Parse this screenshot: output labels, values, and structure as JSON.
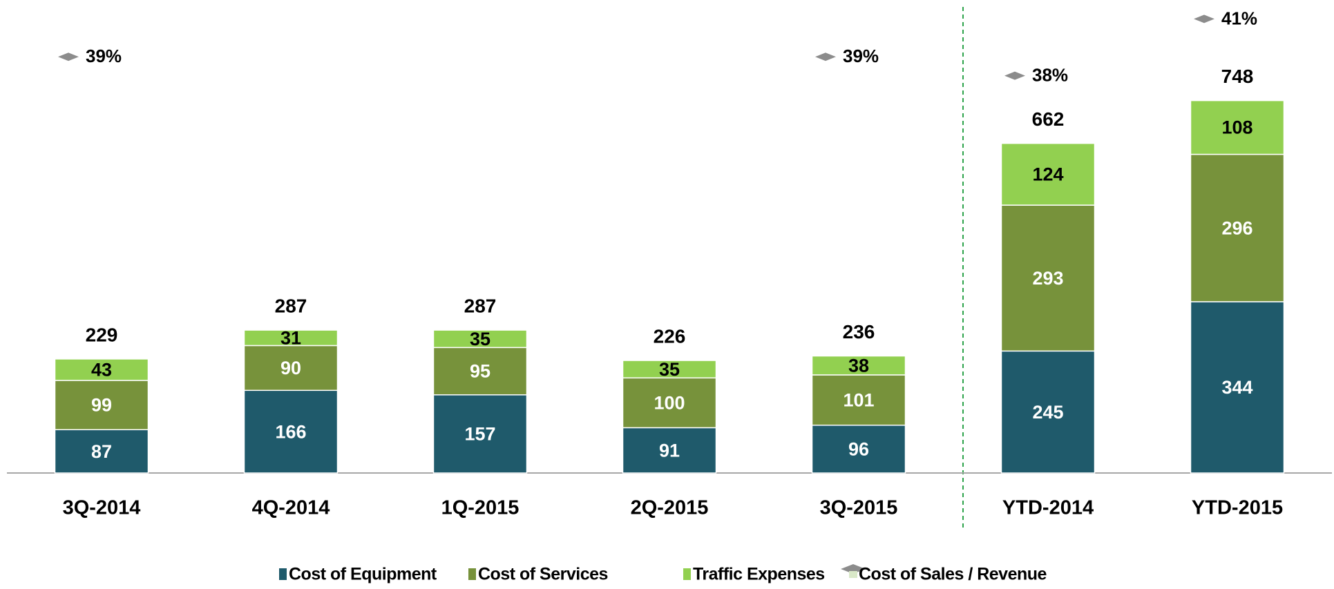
{
  "chart_data": {
    "type": "bar",
    "stacked": true,
    "categories": [
      "3Q-2014",
      "4Q-2014",
      "1Q-2015",
      "2Q-2015",
      "3Q-2015",
      "YTD-2014",
      "YTD-2015"
    ],
    "series": [
      {
        "name": "Cost of Equipment",
        "color": "#1f5a6b",
        "values": [
          87,
          166,
          157,
          91,
          96,
          245,
          344
        ]
      },
      {
        "name": "Cost of Services",
        "color": "#77923b",
        "values": [
          99,
          90,
          95,
          100,
          101,
          293,
          296
        ]
      },
      {
        "name": "Traffic Expenses",
        "color": "#92d050",
        "values": [
          43,
          31,
          35,
          35,
          38,
          124,
          108
        ]
      },
      {
        "name": "Cost of Sales / Revenue",
        "type": "line",
        "axis": "y2",
        "color": "#8c8c8c",
        "values": [
          39,
          null,
          null,
          null,
          39,
          38,
          41
        ],
        "value_labels": [
          "39%",
          null,
          null,
          null,
          "39%",
          "38%",
          "41%"
        ]
      }
    ],
    "totals": [
      229,
      287,
      287,
      226,
      236,
      662,
      748
    ],
    "ylim": [
      0,
      950
    ],
    "y2lim": [
      17,
      42
    ],
    "grid": false
  }
}
